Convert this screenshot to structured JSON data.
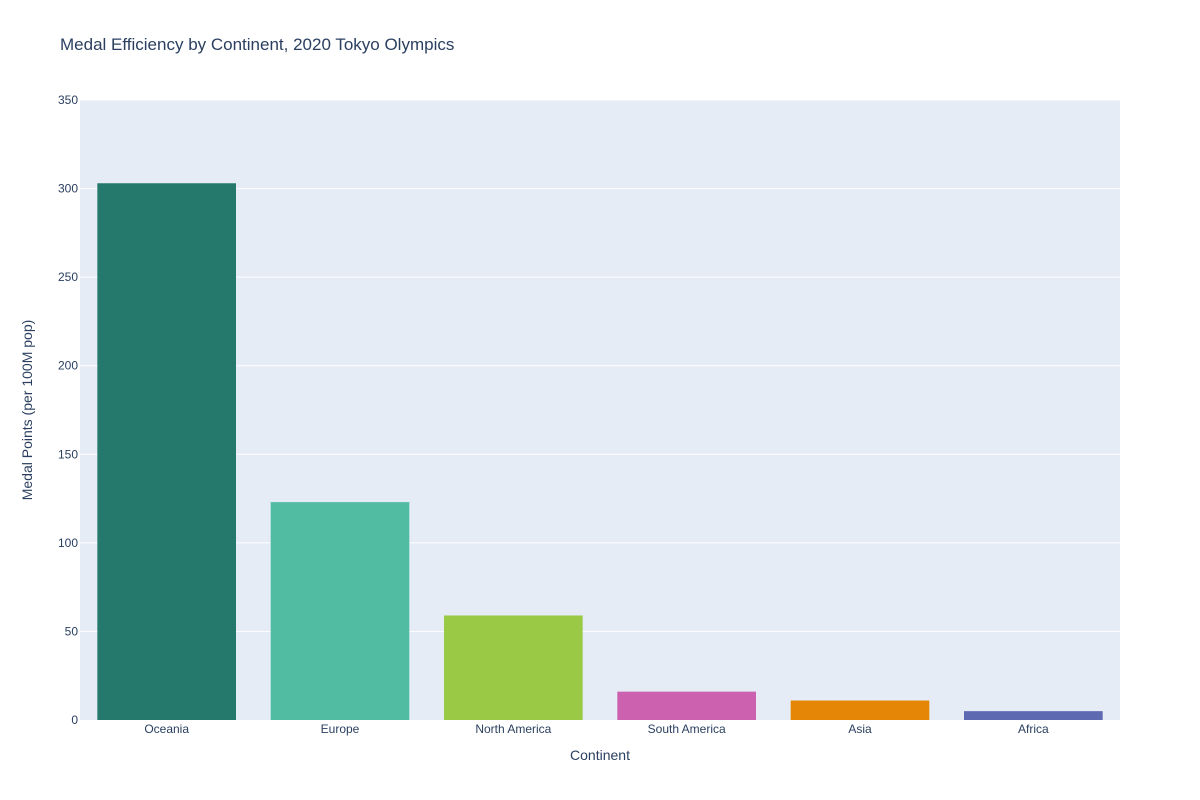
{
  "chart_data": {
    "type": "bar",
    "title": "Medal Efficiency by Continent, 2020 Tokyo Olympics",
    "xlabel": "Continent",
    "ylabel": "Medal Points (per 100M pop)",
    "categories": [
      "Oceania",
      "Europe",
      "North America",
      "South America",
      "Asia",
      "Africa"
    ],
    "values": [
      303,
      123,
      59,
      16,
      11,
      5
    ],
    "colors": [
      "#24796c",
      "#52bca3",
      "#99c945",
      "#cc61b0",
      "#e58606",
      "#5d69b1"
    ],
    "ylim": [
      0,
      350
    ],
    "yticks": [
      0,
      50,
      100,
      150,
      200,
      250,
      300,
      350
    ],
    "grid": true,
    "plot_background": "#e5ecf6"
  }
}
